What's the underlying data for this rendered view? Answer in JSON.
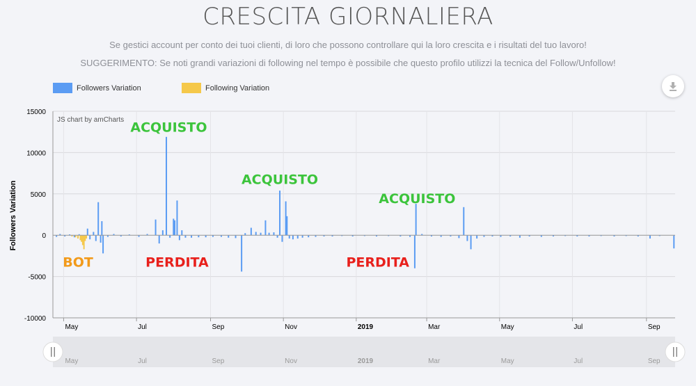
{
  "header": {
    "title": "CRESCITA GIORNALIERA",
    "subtitle_1": "Se gestici account per conto dei tuoi clienti, di loro che possono controllare qui la loro crescita e i risultati del tuo lavoro!",
    "subtitle_2": "SUGGERIMENTO: Se noti grandi variazioni di following nel tempo è possibile che questo profilo utilizzi la tecnica del Follow/Unfollow!"
  },
  "icons": {
    "download": "download-icon",
    "scroll_handle": "grip-handle-icon"
  },
  "colors": {
    "followers": "#5b9cf3",
    "following": "#f5c84a",
    "acquisto": "#3cc43c",
    "perdita": "#e8201c",
    "bot": "#f29a1a"
  },
  "chart_data": {
    "type": "bar",
    "credit": "JS chart by amCharts",
    "ylabel": "Followers Variation",
    "ylim": [
      -10000,
      15000
    ],
    "yticks": [
      "15000",
      "10000",
      "5000",
      "0",
      "-5000",
      "-10000"
    ],
    "x_ticks": [
      {
        "label": "May",
        "date": "2018-05-01",
        "bold": false
      },
      {
        "label": "Jul",
        "date": "2018-07-01",
        "bold": false
      },
      {
        "label": "Sep",
        "date": "2018-09-01",
        "bold": false
      },
      {
        "label": "Nov",
        "date": "2018-11-01",
        "bold": false
      },
      {
        "label": "2019",
        "date": "2019-01-01",
        "bold": true
      },
      {
        "label": "Mar",
        "date": "2019-03-01",
        "bold": false
      },
      {
        "label": "May",
        "date": "2019-05-01",
        "bold": false
      },
      {
        "label": "Jul",
        "date": "2019-07-01",
        "bold": false
      },
      {
        "label": "Sep",
        "date": "2019-09-01",
        "bold": false
      }
    ],
    "x_range": [
      "2018-04-22",
      "2019-09-25"
    ],
    "legend": [
      {
        "name": "Followers Variation",
        "color": "#5b9cf3"
      },
      {
        "name": "Following Variation",
        "color": "#f5c84a"
      }
    ],
    "series": [
      {
        "name": "Followers Variation",
        "color": "#5b9cf3",
        "points": [
          [
            "2018-04-25",
            -200
          ],
          [
            "2018-04-28",
            150
          ],
          [
            "2018-05-02",
            -150
          ],
          [
            "2018-05-06",
            100
          ],
          [
            "2018-05-10",
            -250
          ],
          [
            "2018-05-14",
            120
          ],
          [
            "2018-05-18",
            -300
          ],
          [
            "2018-05-21",
            800
          ],
          [
            "2018-05-23",
            -500
          ],
          [
            "2018-05-26",
            400
          ],
          [
            "2018-05-28",
            -700
          ],
          [
            "2018-05-30",
            4000
          ],
          [
            "2018-06-01",
            -900
          ],
          [
            "2018-06-02",
            1700
          ],
          [
            "2018-06-03",
            -2200
          ],
          [
            "2018-06-07",
            -200
          ],
          [
            "2018-06-12",
            150
          ],
          [
            "2018-06-18",
            -150
          ],
          [
            "2018-06-25",
            100
          ],
          [
            "2018-07-03",
            -200
          ],
          [
            "2018-07-10",
            150
          ],
          [
            "2018-07-17",
            1900
          ],
          [
            "2018-07-20",
            -1000
          ],
          [
            "2018-07-23",
            600
          ],
          [
            "2018-07-26",
            11900
          ],
          [
            "2018-07-29",
            -300
          ],
          [
            "2018-08-01",
            2000
          ],
          [
            "2018-08-02",
            1800
          ],
          [
            "2018-08-04",
            4200
          ],
          [
            "2018-08-06",
            -600
          ],
          [
            "2018-08-08",
            600
          ],
          [
            "2018-08-11",
            -300
          ],
          [
            "2018-08-16",
            -300
          ],
          [
            "2018-08-22",
            -250
          ],
          [
            "2018-08-28",
            -250
          ],
          [
            "2018-09-03",
            -200
          ],
          [
            "2018-09-10",
            -200
          ],
          [
            "2018-09-16",
            -300
          ],
          [
            "2018-09-22",
            -350
          ],
          [
            "2018-09-27",
            -4400
          ],
          [
            "2018-09-30",
            250
          ],
          [
            "2018-10-05",
            900
          ],
          [
            "2018-10-09",
            400
          ],
          [
            "2018-10-13",
            300
          ],
          [
            "2018-10-17",
            1800
          ],
          [
            "2018-10-20",
            300
          ],
          [
            "2018-10-24",
            350
          ],
          [
            "2018-10-27",
            -300
          ],
          [
            "2018-10-29",
            5400
          ],
          [
            "2018-10-31",
            -800
          ],
          [
            "2018-11-03",
            4100
          ],
          [
            "2018-11-04",
            2300
          ],
          [
            "2018-11-06",
            -400
          ],
          [
            "2018-11-09",
            -500
          ],
          [
            "2018-11-13",
            -400
          ],
          [
            "2018-11-17",
            -300
          ],
          [
            "2018-11-22",
            -250
          ],
          [
            "2018-11-28",
            -200
          ],
          [
            "2018-12-05",
            -150
          ],
          [
            "2018-12-12",
            -150
          ],
          [
            "2018-12-20",
            -100
          ],
          [
            "2018-12-29",
            -150
          ],
          [
            "2019-01-08",
            -100
          ],
          [
            "2019-01-18",
            -150
          ],
          [
            "2019-01-28",
            -100
          ],
          [
            "2019-02-07",
            -150
          ],
          [
            "2019-02-15",
            -200
          ],
          [
            "2019-02-19",
            -4000
          ],
          [
            "2019-02-20",
            3800
          ],
          [
            "2019-02-25",
            150
          ],
          [
            "2019-03-05",
            -150
          ],
          [
            "2019-03-13",
            -200
          ],
          [
            "2019-03-21",
            -150
          ],
          [
            "2019-03-28",
            -350
          ],
          [
            "2019-04-01",
            3400
          ],
          [
            "2019-04-04",
            -700
          ],
          [
            "2019-04-07",
            -1700
          ],
          [
            "2019-04-12",
            -400
          ],
          [
            "2019-04-18",
            -200
          ],
          [
            "2019-04-25",
            -150
          ],
          [
            "2019-05-02",
            -200
          ],
          [
            "2019-05-10",
            -150
          ],
          [
            "2019-05-18",
            -300
          ],
          [
            "2019-05-26",
            -150
          ],
          [
            "2019-06-05",
            -200
          ],
          [
            "2019-06-15",
            -150
          ],
          [
            "2019-06-25",
            -100
          ],
          [
            "2019-07-05",
            -150
          ],
          [
            "2019-07-15",
            -150
          ],
          [
            "2019-07-25",
            -100
          ],
          [
            "2019-08-05",
            -150
          ],
          [
            "2019-08-15",
            -100
          ],
          [
            "2019-08-25",
            -150
          ],
          [
            "2019-09-04",
            -400
          ],
          [
            "2019-09-12",
            -100
          ],
          [
            "2019-09-24",
            -1600
          ]
        ]
      },
      {
        "name": "Following Variation",
        "color": "#f5c84a",
        "points": [
          [
            "2018-05-08",
            -150
          ],
          [
            "2018-05-11",
            -250
          ],
          [
            "2018-05-13",
            -400
          ],
          [
            "2018-05-15",
            -600
          ],
          [
            "2018-05-16",
            -800
          ],
          [
            "2018-05-17",
            -1200
          ],
          [
            "2018-05-18",
            -1700
          ],
          [
            "2018-05-19",
            -700
          ],
          [
            "2018-05-20",
            -400
          ]
        ]
      }
    ],
    "annotations": [
      {
        "text": "ACQUISTO",
        "date": "2018-07-28",
        "value": 12500,
        "kind": "acquisto"
      },
      {
        "text": "ACQUISTO",
        "date": "2018-10-29",
        "value": 6200,
        "kind": "acquisto"
      },
      {
        "text": "ACQUISTO",
        "date": "2019-02-21",
        "value": 3900,
        "kind": "acquisto"
      },
      {
        "text": "BOT",
        "date": "2018-05-13",
        "value": -3800,
        "kind": "bot"
      },
      {
        "text": "PERDITA",
        "date": "2018-08-04",
        "value": -3800,
        "kind": "perdita"
      },
      {
        "text": "PERDITA",
        "date": "2019-01-19",
        "value": -3800,
        "kind": "perdita"
      }
    ]
  }
}
